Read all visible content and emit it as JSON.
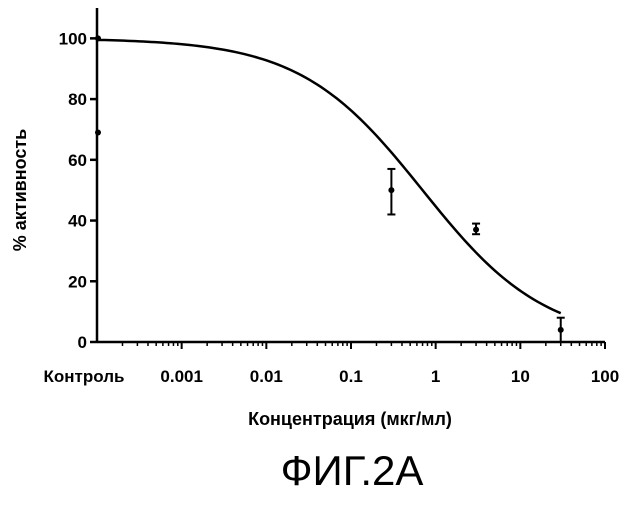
{
  "chart_data": {
    "type": "scatter",
    "title": "",
    "caption": "ФИГ.2А",
    "xlabel": "Концентрация (мкг/мл)",
    "ylabel": "% активность",
    "x_scale": "log",
    "xlim": [
      0.0001,
      100
    ],
    "ylim": [
      0,
      110
    ],
    "x_ticks": [
      {
        "value": 0.001,
        "label": "0.001"
      },
      {
        "value": 0.01,
        "label": "0.01"
      },
      {
        "value": 0.1,
        "label": "0.1"
      },
      {
        "value": 1,
        "label": "1"
      },
      {
        "value": 10,
        "label": "10"
      },
      {
        "value": 100,
        "label": "100"
      }
    ],
    "control_label": "Контроль",
    "y_ticks": [
      {
        "value": 0,
        "label": "0"
      },
      {
        "value": 20,
        "label": "20"
      },
      {
        "value": 40,
        "label": "40"
      },
      {
        "value": 60,
        "label": "60"
      },
      {
        "value": 80,
        "label": "80"
      },
      {
        "value": 100,
        "label": "100"
      }
    ],
    "grid": false,
    "control_points": [
      {
        "y": 100
      },
      {
        "y": 69
      }
    ],
    "points": [
      {
        "x": 0.3,
        "y": 50,
        "err_low": 42,
        "err_high": 57
      },
      {
        "x": 3,
        "y": 37,
        "err_low": 35.5,
        "err_high": 39
      },
      {
        "x": 30,
        "y": 4,
        "err_low": 0,
        "err_high": 8
      }
    ],
    "fit_curve": {
      "type": "sigmoid",
      "top": 100,
      "bottom": 0,
      "ec50": 0.7,
      "hill": 0.6,
      "x_start": 0.0001,
      "x_end": 30
    }
  }
}
